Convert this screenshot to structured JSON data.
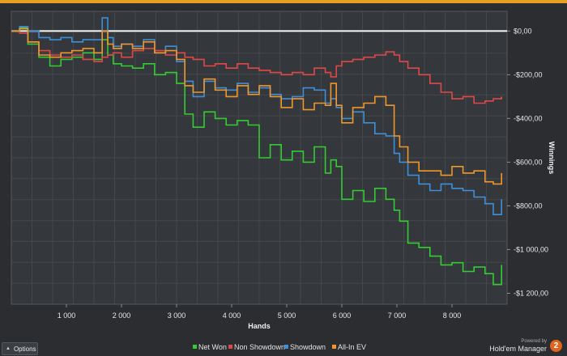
{
  "chart_data": {
    "type": "line",
    "xlabel": "Hands",
    "ylabel": "Winnings",
    "xlim": [
      0,
      9000
    ],
    "ylim": [
      -1250,
      90
    ],
    "x_ticks": [
      {
        "value": 1000,
        "label": "1 000"
      },
      {
        "value": 2000,
        "label": "2 000"
      },
      {
        "value": 3000,
        "label": "3 000"
      },
      {
        "value": 4000,
        "label": "4 000"
      },
      {
        "value": 5000,
        "label": "5 000"
      },
      {
        "value": 6000,
        "label": "6 000"
      },
      {
        "value": 7000,
        "label": "7 000"
      },
      {
        "value": 8000,
        "label": "8 000"
      }
    ],
    "y_ticks": [
      {
        "value": 0,
        "label": "$0,00"
      },
      {
        "value": -200,
        "label": "-$200,00"
      },
      {
        "value": -400,
        "label": "-$400,00"
      },
      {
        "value": -600,
        "label": "-$600,00"
      },
      {
        "value": -800,
        "label": "-$800,00"
      },
      {
        "value": -1000,
        "label": "-$1 000,00"
      },
      {
        "value": -1200,
        "label": "-$1 200,00"
      }
    ],
    "y_axis_position": "right",
    "grid": true,
    "zero_line": true,
    "legend_position": "bottom",
    "x": [
      0,
      150,
      300,
      500,
      700,
      900,
      1100,
      1300,
      1500,
      1650,
      1750,
      1850,
      2000,
      2200,
      2400,
      2600,
      2800,
      3000,
      3150,
      3300,
      3500,
      3700,
      3900,
      4100,
      4300,
      4500,
      4700,
      4900,
      5100,
      5300,
      5500,
      5700,
      5800,
      5900,
      6000,
      6200,
      6400,
      6600,
      6800,
      6950,
      7050,
      7200,
      7400,
      7600,
      7800,
      8000,
      8200,
      8400,
      8600,
      8750,
      8900
    ],
    "series": [
      {
        "name": "Net Won",
        "color": "#33cc33",
        "values": [
          0,
          15,
          -60,
          -120,
          -160,
          -130,
          -120,
          -100,
          -130,
          -40,
          -110,
          -150,
          -160,
          -170,
          -150,
          -200,
          -190,
          -240,
          -380,
          -440,
          -370,
          -400,
          -430,
          -410,
          -430,
          -580,
          -520,
          -590,
          -550,
          -600,
          -530,
          -650,
          -590,
          -620,
          -770,
          -730,
          -780,
          -720,
          -770,
          -820,
          -870,
          -970,
          -990,
          -1030,
          -1070,
          -1060,
          -1100,
          -1080,
          -1110,
          -1160,
          -1070
        ]
      },
      {
        "name": "Non Showdown",
        "color": "#e04848",
        "values": [
          0,
          -10,
          -50,
          -90,
          -110,
          -120,
          -110,
          -130,
          -140,
          -120,
          -110,
          -100,
          -120,
          -90,
          -80,
          -90,
          -110,
          -100,
          -120,
          -130,
          -160,
          -150,
          -170,
          -150,
          -170,
          -180,
          -190,
          -200,
          -190,
          -200,
          -170,
          -190,
          -210,
          -160,
          -140,
          -130,
          -120,
          -110,
          -95,
          -110,
          -140,
          -170,
          -200,
          -240,
          -280,
          -310,
          -300,
          -330,
          -320,
          -310,
          -300
        ]
      },
      {
        "name": "Showdown",
        "color": "#3f8fd8",
        "values": [
          0,
          20,
          0,
          -30,
          -40,
          -30,
          -50,
          -40,
          -40,
          60,
          -30,
          -70,
          -60,
          -70,
          -40,
          -100,
          -70,
          -140,
          -230,
          -300,
          -230,
          -260,
          -270,
          -240,
          -280,
          -260,
          -290,
          -310,
          -300,
          -260,
          -270,
          -330,
          -310,
          -350,
          -400,
          -370,
          -420,
          -470,
          -480,
          -560,
          -600,
          -660,
          -700,
          -730,
          -700,
          -720,
          -730,
          -760,
          -790,
          -840,
          -770
        ]
      },
      {
        "name": "All-In EV",
        "color": "#f0962a",
        "values": [
          0,
          10,
          -50,
          -110,
          -120,
          -100,
          -90,
          -80,
          -100,
          0,
          -60,
          -80,
          -60,
          -80,
          -50,
          -100,
          -90,
          -130,
          -250,
          -280,
          -220,
          -270,
          -300,
          -250,
          -290,
          -250,
          -300,
          -350,
          -310,
          -360,
          -330,
          -340,
          -240,
          -340,
          -420,
          -350,
          -330,
          -300,
          -340,
          -480,
          -530,
          -600,
          -640,
          -640,
          -660,
          -620,
          -650,
          -640,
          -690,
          -700,
          -650
        ]
      }
    ]
  },
  "options_label": "Options",
  "branding": {
    "powered_by": "Powered by",
    "product": "Hold'em Manager",
    "logo_mark": "2"
  }
}
